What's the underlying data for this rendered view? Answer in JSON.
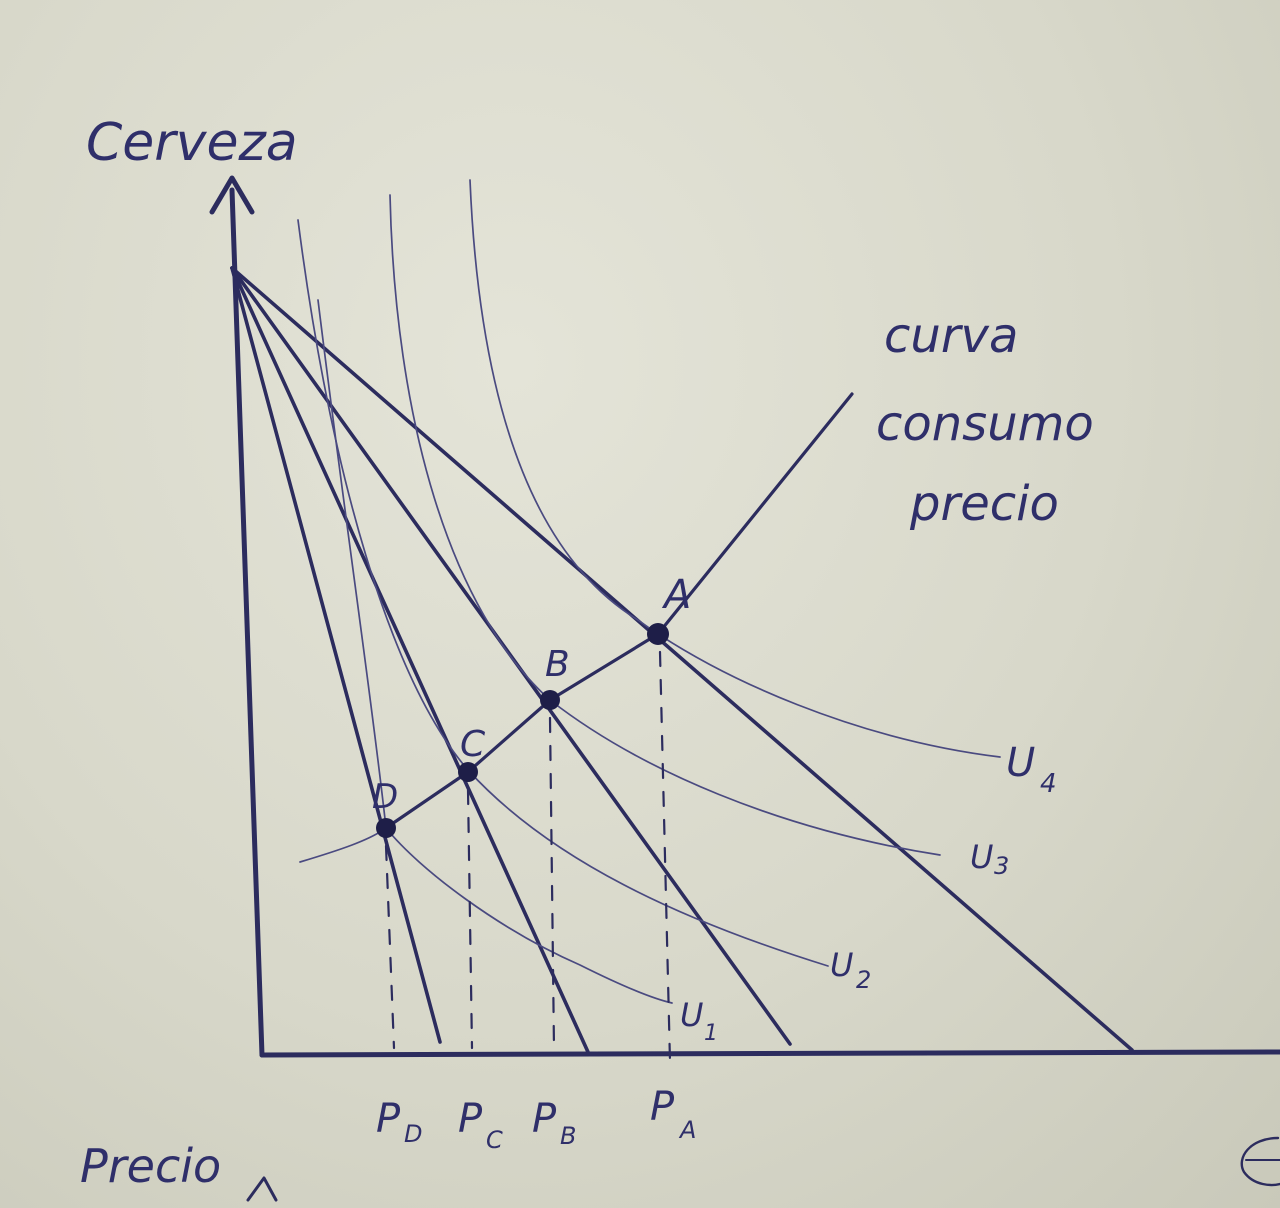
{
  "labels": {
    "y_axis": "Cerveza",
    "x_axis": "Precio",
    "curve_name": [
      "curva",
      "consumo",
      "precio"
    ]
  },
  "points": [
    {
      "id": "A",
      "label": "A"
    },
    {
      "id": "B",
      "label": "B"
    },
    {
      "id": "C",
      "label": "C"
    },
    {
      "id": "D",
      "label": "D"
    }
  ],
  "price_ticks": [
    {
      "id": "PD",
      "main": "P",
      "sub": "D"
    },
    {
      "id": "PC",
      "main": "P",
      "sub": "C"
    },
    {
      "id": "PB",
      "main": "P",
      "sub": "B"
    },
    {
      "id": "PA",
      "main": "P",
      "sub": "A"
    }
  ],
  "indifference_curves": [
    {
      "id": "U1",
      "main": "U",
      "sub": "1"
    },
    {
      "id": "U2",
      "main": "U",
      "sub": "2"
    },
    {
      "id": "U3",
      "main": "U",
      "sub": "3"
    },
    {
      "id": "U4",
      "main": "U",
      "sub": "4"
    }
  ],
  "colors": {
    "ink": "#2c2c5e",
    "paper": "#dcdccf"
  }
}
